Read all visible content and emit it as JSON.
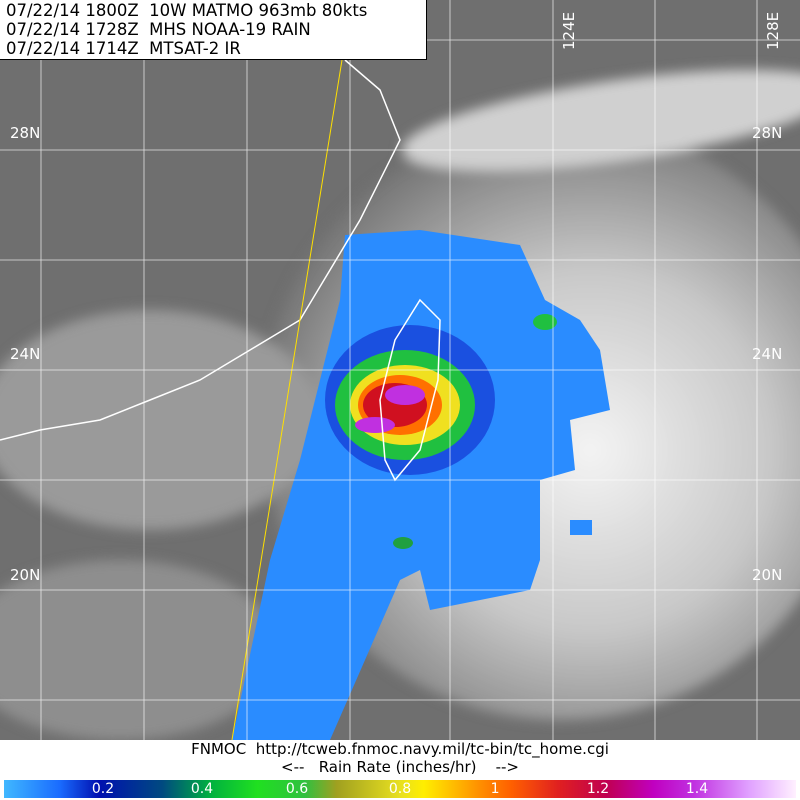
{
  "header": {
    "lines": [
      "07/22/14 1800Z  10W MATMO 963mb 80kts",
      "07/22/14 1728Z  MHS NOAA-19 RAIN",
      "07/22/14 1714Z  MTSAT-2 IR"
    ]
  },
  "map": {
    "lat_labels": [
      "28N",
      "24N",
      "20N"
    ],
    "lon_labels": [
      "124E",
      "128E"
    ]
  },
  "footer": {
    "credit": "FNMOC  http://tcweb.fnmoc.navy.mil/tc-bin/tc_home.cgi",
    "legend_title": "<--   Rain Rate (inches/hr)    -->"
  },
  "colorbar": {
    "ticks": [
      "0.2",
      "0.4",
      "0.6",
      "0.8",
      "1",
      "1.2",
      "1.4"
    ],
    "range": [
      0,
      1.6
    ],
    "colors": [
      "#40b8ff",
      "#0010b0",
      "#20e020",
      "#ffee00",
      "#ff6000",
      "#c00050",
      "#c000c0",
      "#fff0ff"
    ]
  }
}
